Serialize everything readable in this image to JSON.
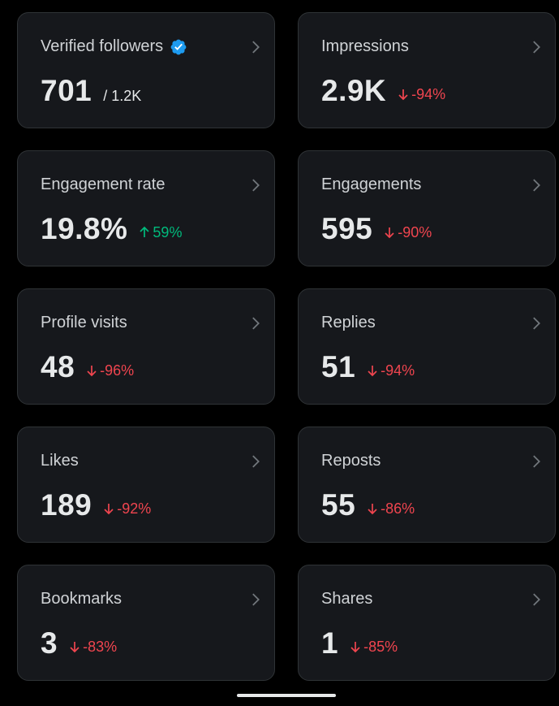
{
  "colors": {
    "background": "#000000",
    "card": "#16181c",
    "card_border": "#2f3336",
    "text": "#e7e9ea",
    "negative": "#f0454f",
    "positive": "#00ba7c",
    "verified": "#1d9bf0"
  },
  "cards": [
    {
      "title": "Verified followers",
      "value": "701",
      "secondary": "/ 1.2K",
      "icon": "verified-badge-icon"
    },
    {
      "title": "Impressions",
      "value": "2.9K",
      "change": "-94%",
      "direction": "down"
    },
    {
      "title": "Engagement rate",
      "value": "19.8%",
      "change": "59%",
      "direction": "up"
    },
    {
      "title": "Engagements",
      "value": "595",
      "change": "-90%",
      "direction": "down"
    },
    {
      "title": "Profile visits",
      "value": "48",
      "change": "-96%",
      "direction": "down"
    },
    {
      "title": "Replies",
      "value": "51",
      "change": "-94%",
      "direction": "down"
    },
    {
      "title": "Likes",
      "value": "189",
      "change": "-92%",
      "direction": "down"
    },
    {
      "title": "Reposts",
      "value": "55",
      "change": "-86%",
      "direction": "down"
    },
    {
      "title": "Bookmarks",
      "value": "3",
      "change": "-83%",
      "direction": "down"
    },
    {
      "title": "Shares",
      "value": "1",
      "change": "-85%",
      "direction": "down"
    }
  ]
}
